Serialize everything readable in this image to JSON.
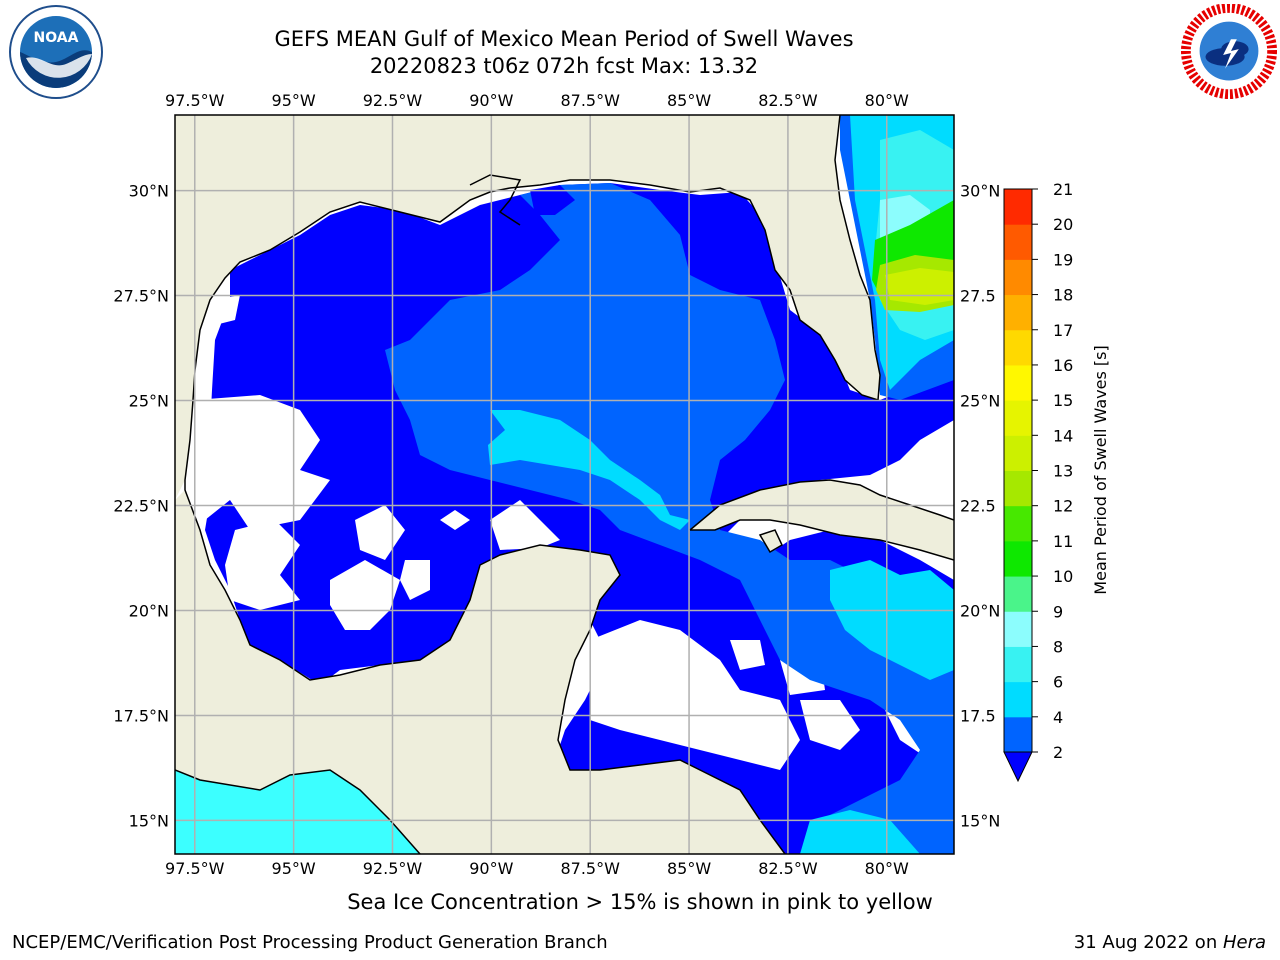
{
  "title_line1": "GEFS MEAN Gulf of Mexico Mean Period of Swell Waves",
  "title_line2": "20220823 t06z 072h fcst   Max: 13.32",
  "bottom_note": "Sea Ice Concentration > 15% is shown in pink to yellow",
  "footer": {
    "credit": "NCEP/EMC/Verification Post Processing Product Generation Branch",
    "date": "31 Aug 2022 on ",
    "machine": "Hera"
  },
  "logos": {
    "left": "noaa-logo",
    "right": "nws-logo"
  },
  "map": {
    "lon_ticks": [
      "97.5°W",
      "95°W",
      "92.5°W",
      "90°W",
      "87.5°W",
      "85°W",
      "82.5°W",
      "80°W"
    ],
    "lat_ticks": [
      "30°N",
      "27.5°N",
      "25°N",
      "22.5°N",
      "20°N",
      "17.5°N",
      "15°N"
    ],
    "lat_ticks_right": [
      "30°N",
      "27.5",
      "25°N",
      "22.5",
      "20°N",
      "17.5",
      "15°N"
    ],
    "lon_values": [
      -97.5,
      -95,
      -92.5,
      -90,
      -87.5,
      -85,
      -82.5,
      -80
    ],
    "lat_values": [
      30,
      27.5,
      25,
      22.5,
      20,
      17.5,
      15
    ],
    "extent": {
      "lon": [
        -98,
        -78.3
      ],
      "lat": [
        14.2,
        31.8
      ]
    },
    "land_color": "#eeeedc",
    "grid_color": "#b0b0b0"
  },
  "colorbar": {
    "label": "Mean Period of Swell Waves [s]",
    "ticks": [
      "2",
      "4",
      "6",
      "8",
      "9",
      "10",
      "11",
      "12",
      "13",
      "14",
      "15",
      "16",
      "17",
      "18",
      "19",
      "20",
      "21"
    ],
    "colors": [
      "#0064ff",
      "#00dcff",
      "#38f2f2",
      "#8cfdfd",
      "#4af48a",
      "#0ee800",
      "#47e800",
      "#a6e800",
      "#ccf000",
      "#e6f400",
      "#fff800",
      "#ffd900",
      "#ffb000",
      "#ff8a00",
      "#ff5a00",
      "#ff2a00"
    ],
    "under_color": "#0000ff"
  }
}
